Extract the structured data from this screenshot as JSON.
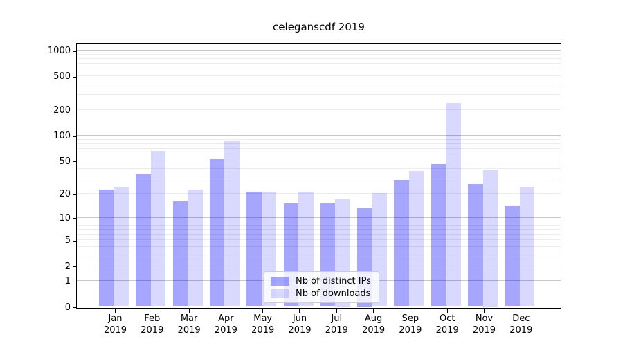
{
  "chart_data": {
    "type": "bar",
    "title": "celeganscdf 2019",
    "categories": [
      "Jan 2019",
      "Feb 2019",
      "Mar 2019",
      "Apr 2019",
      "May 2019",
      "Jun 2019",
      "Jul 2019",
      "Aug 2019",
      "Sep 2019",
      "Oct 2019",
      "Nov 2019",
      "Dec 2019"
    ],
    "series": [
      {
        "name": "Nb of distinct IPs",
        "color": "#0000ff",
        "alpha": 0.35,
        "values": [
          22,
          34,
          16,
          52,
          21,
          15,
          15,
          13,
          29,
          45,
          26,
          14
        ]
      },
      {
        "name": "Nb of downloads",
        "color": "#0000ff",
        "alpha": 0.15,
        "values": [
          24,
          65,
          22,
          85,
          21,
          21,
          17,
          20,
          37,
          238,
          38,
          24
        ]
      }
    ],
    "xlabel": "",
    "ylabel": "",
    "yscale": "log1p",
    "yticks": [
      0,
      1,
      2,
      5,
      10,
      20,
      50,
      100,
      200,
      500,
      1000
    ],
    "ylim": [
      0,
      1230
    ],
    "grid": true,
    "legend_position": "lower center"
  }
}
